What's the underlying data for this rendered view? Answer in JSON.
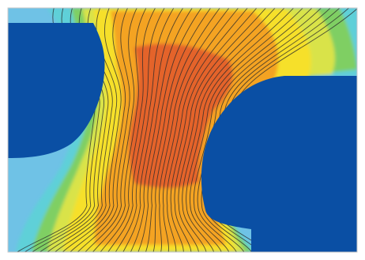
{
  "figure": {
    "kind": "contour-field-with-streamlines",
    "colors": {
      "frame": "#d7d7d7",
      "solid_region": "#0a4fa4",
      "band_outer": "#6fc2e6",
      "band_mid_cyan": "#5fd0d8",
      "band_green": "#7fcf63",
      "band_yellow_green": "#d9e34a",
      "band_yellow": "#f6e02a",
      "band_orange": "#f4a323",
      "band_core": "#e4642a",
      "lines": "#2a2a2a"
    }
  }
}
